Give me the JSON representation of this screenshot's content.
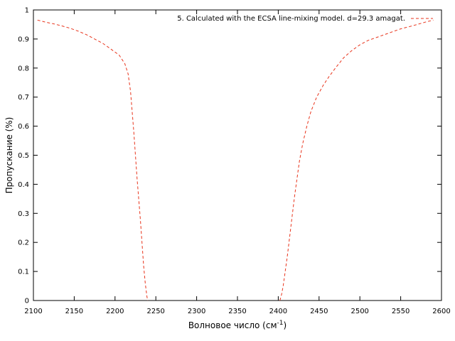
{
  "chart_data": {
    "type": "line",
    "title": "",
    "xlabel": "Волновое число (см",
    "xlabel_sup": "-1",
    "xlabel_end": ")",
    "ylabel": "Пропускание (%)",
    "xlim": [
      2100,
      2600
    ],
    "ylim": [
      0,
      1
    ],
    "x_ticks": [
      "2100",
      "2150",
      "2200",
      "2250",
      "2300",
      "2350",
      "2400",
      "2450",
      "2500",
      "2550",
      "2600"
    ],
    "y_ticks": [
      "0",
      "0.1",
      "0.2",
      "0.3",
      "0.4",
      "0.5",
      "0.6",
      "0.7",
      "0.8",
      "0.9",
      "1"
    ],
    "grid": false,
    "legend_position": "top-right",
    "series": [
      {
        "name": "5. Calculated with the ECSA line-mixing model. d=29.3 amagat.",
        "color": "#e8341c",
        "style": "dashed",
        "segments": [
          [
            [
              2105,
              0.965
            ],
            [
              2115,
              0.958
            ],
            [
              2125,
              0.952
            ],
            [
              2135,
              0.945
            ],
            [
              2145,
              0.937
            ],
            [
              2155,
              0.927
            ],
            [
              2165,
              0.915
            ],
            [
              2175,
              0.9
            ],
            [
              2185,
              0.885
            ],
            [
              2195,
              0.865
            ],
            [
              2205,
              0.845
            ],
            [
              2212,
              0.815
            ],
            [
              2216,
              0.78
            ],
            [
              2219,
              0.72
            ],
            [
              2221,
              0.65
            ],
            [
              2223,
              0.58
            ],
            [
              2225,
              0.5
            ],
            [
              2227,
              0.42
            ],
            [
              2229,
              0.35
            ],
            [
              2231,
              0.28
            ],
            [
              2233,
              0.2
            ],
            [
              2235,
              0.12
            ],
            [
              2237,
              0.06
            ],
            [
              2239,
              0.015
            ],
            [
              2240,
              0.0
            ]
          ],
          [
            [
              2402,
              0.0
            ],
            [
              2404,
              0.02
            ],
            [
              2406,
              0.05
            ],
            [
              2408,
              0.09
            ],
            [
              2411,
              0.15
            ],
            [
              2414,
              0.22
            ],
            [
              2417,
              0.29
            ],
            [
              2420,
              0.36
            ],
            [
              2423,
              0.42
            ],
            [
              2426,
              0.48
            ],
            [
              2430,
              0.54
            ],
            [
              2435,
              0.6
            ],
            [
              2440,
              0.65
            ],
            [
              2447,
              0.7
            ],
            [
              2455,
              0.74
            ],
            [
              2462,
              0.77
            ],
            [
              2470,
              0.8
            ],
            [
              2480,
              0.835
            ],
            [
              2490,
              0.86
            ],
            [
              2500,
              0.88
            ],
            [
              2510,
              0.895
            ],
            [
              2520,
              0.905
            ],
            [
              2530,
              0.915
            ],
            [
              2540,
              0.925
            ],
            [
              2550,
              0.935
            ],
            [
              2560,
              0.942
            ],
            [
              2570,
              0.95
            ],
            [
              2580,
              0.958
            ],
            [
              2590,
              0.965
            ]
          ]
        ]
      }
    ]
  }
}
